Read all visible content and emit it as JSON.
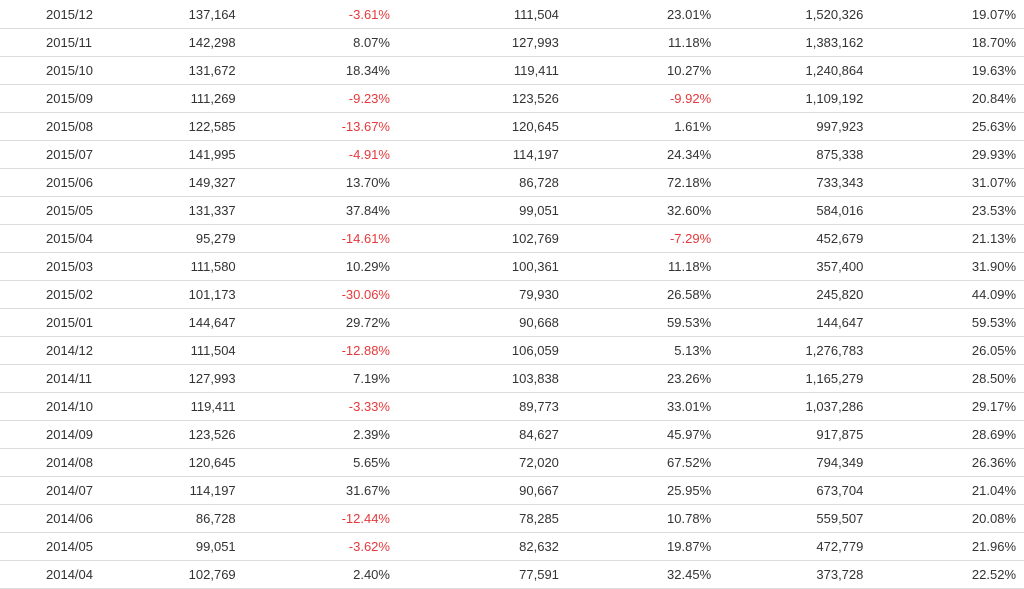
{
  "colors": {
    "text": "#333333",
    "negative": "#e4393c",
    "row_border": "#dcdcdc"
  },
  "rows": [
    [
      "2015/12",
      "137,164",
      "-3.61%",
      "111,504",
      "23.01%",
      "1,520,326",
      "19.07%"
    ],
    [
      "2015/11",
      "142,298",
      "8.07%",
      "127,993",
      "11.18%",
      "1,383,162",
      "18.70%"
    ],
    [
      "2015/10",
      "131,672",
      "18.34%",
      "119,411",
      "10.27%",
      "1,240,864",
      "19.63%"
    ],
    [
      "2015/09",
      "111,269",
      "-9.23%",
      "123,526",
      "-9.92%",
      "1,109,192",
      "20.84%"
    ],
    [
      "2015/08",
      "122,585",
      "-13.67%",
      "120,645",
      "1.61%",
      "997,923",
      "25.63%"
    ],
    [
      "2015/07",
      "141,995",
      "-4.91%",
      "114,197",
      "24.34%",
      "875,338",
      "29.93%"
    ],
    [
      "2015/06",
      "149,327",
      "13.70%",
      "86,728",
      "72.18%",
      "733,343",
      "31.07%"
    ],
    [
      "2015/05",
      "131,337",
      "37.84%",
      "99,051",
      "32.60%",
      "584,016",
      "23.53%"
    ],
    [
      "2015/04",
      "95,279",
      "-14.61%",
      "102,769",
      "-7.29%",
      "452,679",
      "21.13%"
    ],
    [
      "2015/03",
      "111,580",
      "10.29%",
      "100,361",
      "11.18%",
      "357,400",
      "31.90%"
    ],
    [
      "2015/02",
      "101,173",
      "-30.06%",
      "79,930",
      "26.58%",
      "245,820",
      "44.09%"
    ],
    [
      "2015/01",
      "144,647",
      "29.72%",
      "90,668",
      "59.53%",
      "144,647",
      "59.53%"
    ],
    [
      "2014/12",
      "111,504",
      "-12.88%",
      "106,059",
      "5.13%",
      "1,276,783",
      "26.05%"
    ],
    [
      "2014/11",
      "127,993",
      "7.19%",
      "103,838",
      "23.26%",
      "1,165,279",
      "28.50%"
    ],
    [
      "2014/10",
      "119,411",
      "-3.33%",
      "89,773",
      "33.01%",
      "1,037,286",
      "29.17%"
    ],
    [
      "2014/09",
      "123,526",
      "2.39%",
      "84,627",
      "45.97%",
      "917,875",
      "28.69%"
    ],
    [
      "2014/08",
      "120,645",
      "5.65%",
      "72,020",
      "67.52%",
      "794,349",
      "26.36%"
    ],
    [
      "2014/07",
      "114,197",
      "31.67%",
      "90,667",
      "25.95%",
      "673,704",
      "21.04%"
    ],
    [
      "2014/06",
      "86,728",
      "-12.44%",
      "78,285",
      "10.78%",
      "559,507",
      "20.08%"
    ],
    [
      "2014/05",
      "99,051",
      "-3.62%",
      "82,632",
      "19.87%",
      "472,779",
      "21.96%"
    ],
    [
      "2014/04",
      "102,769",
      "2.40%",
      "77,591",
      "32.45%",
      "373,728",
      "22.52%"
    ]
  ]
}
